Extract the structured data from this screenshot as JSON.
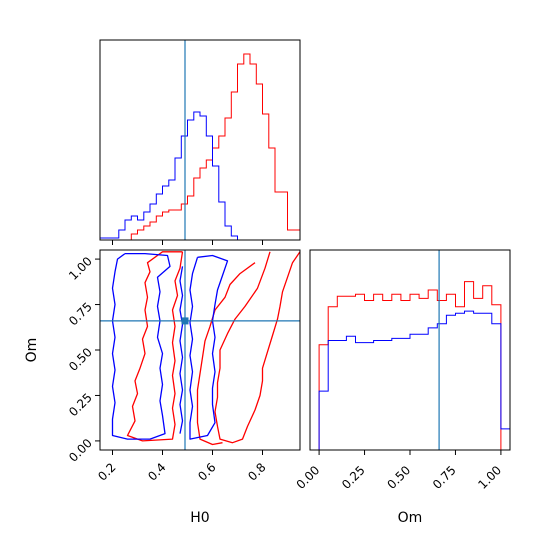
{
  "colors": {
    "red": "#ff0000",
    "blue": "#0000ff",
    "truth": "#1f77b4",
    "frame": "#000000"
  },
  "chart_data": {
    "type": "corner",
    "parameters": [
      "H0",
      "Om"
    ],
    "truth": {
      "H0": 0.49,
      "Om": 0.66
    },
    "labels": {
      "x_bottom_left": "H0",
      "x_bottom_right": "Om",
      "y_left": "Om"
    },
    "hist_H0": {
      "xlim": [
        0.15,
        0.95
      ],
      "bin_edges": [
        0.15,
        0.175,
        0.2,
        0.225,
        0.25,
        0.275,
        0.3,
        0.325,
        0.35,
        0.375,
        0.4,
        0.425,
        0.45,
        0.475,
        0.5,
        0.525,
        0.55,
        0.575,
        0.6,
        0.625,
        0.65,
        0.675,
        0.7,
        0.725,
        0.75,
        0.775,
        0.8,
        0.825,
        0.85,
        0.875,
        0.9,
        0.925,
        0.95
      ],
      "series": [
        {
          "color": "red",
          "counts": [
            0,
            0,
            0,
            0,
            0,
            0.03,
            0.05,
            0.07,
            0.09,
            0.12,
            0.14,
            0.15,
            0.15,
            0.18,
            0.22,
            0.31,
            0.36,
            0.4,
            0.46,
            0.52,
            0.61,
            0.74,
            0.88,
            0.93,
            0.88,
            0.78,
            0.63,
            0.46,
            0.24,
            0.24,
            0.05,
            0.05
          ]
        },
        {
          "color": "blue",
          "counts": [
            0.01,
            0.01,
            0.01,
            0.05,
            0.1,
            0.12,
            0.1,
            0.14,
            0.18,
            0.23,
            0.27,
            0.3,
            0.41,
            0.52,
            0.6,
            0.64,
            0.62,
            0.52,
            0.37,
            0.19,
            0.07,
            0.02,
            0,
            0,
            0,
            0,
            0,
            0,
            0,
            0,
            0,
            0
          ]
        }
      ],
      "ylim": [
        0,
        1.0
      ]
    },
    "hist_Om": {
      "xlim": [
        -0.05,
        1.05
      ],
      "ticks": [
        "0.00",
        "0.25",
        "0.50",
        "0.75",
        "1.00"
      ],
      "tick_values": [
        0,
        0.25,
        0.5,
        0.75,
        1.0
      ],
      "bin_edges": [
        -0.05,
        0,
        0.05,
        0.1,
        0.15,
        0.2,
        0.25,
        0.3,
        0.35,
        0.4,
        0.45,
        0.5,
        0.55,
        0.6,
        0.65,
        0.7,
        0.75,
        0.8,
        0.85,
        0.9,
        0.95,
        1.0,
        1.05
      ],
      "series": [
        {
          "color": "red",
          "counts": [
            0,
            0.5,
            0.68,
            0.73,
            0.73,
            0.74,
            0.71,
            0.74,
            0.71,
            0.74,
            0.71,
            0.74,
            0.72,
            0.76,
            0.71,
            0.74,
            0.68,
            0.8,
            0.72,
            0.78,
            0.69,
            0
          ]
        },
        {
          "color": "blue",
          "counts": [
            0,
            0.28,
            0.52,
            0.52,
            0.54,
            0.51,
            0.51,
            0.52,
            0.52,
            0.53,
            0.53,
            0.55,
            0.55,
            0.58,
            0.6,
            0.64,
            0.65,
            0.66,
            0.65,
            0.65,
            0.6,
            0.1
          ]
        }
      ],
      "ylim": [
        0,
        0.95
      ]
    },
    "contour_panel": {
      "xlim": [
        0.15,
        0.95
      ],
      "ylim": [
        -0.05,
        1.05
      ],
      "xticks": [
        "0.2",
        "0.4",
        "0.6",
        "0.8"
      ],
      "xtick_values": [
        0.2,
        0.4,
        0.6,
        0.8
      ],
      "yticks": [
        "0.00",
        "0.25",
        "0.50",
        "0.75",
        "1.00"
      ],
      "ytick_values": [
        0,
        0.25,
        0.5,
        0.75,
        1.0
      ],
      "contours": [
        {
          "color": "red",
          "points": [
            [
              0.48,
              1.04
            ],
            [
              0.47,
              0.95
            ],
            [
              0.45,
              0.88
            ],
            [
              0.46,
              0.8
            ],
            [
              0.44,
              0.72
            ],
            [
              0.45,
              0.63
            ],
            [
              0.44,
              0.54
            ],
            [
              0.45,
              0.44
            ],
            [
              0.44,
              0.36
            ],
            [
              0.45,
              0.26
            ],
            [
              0.44,
              0.18
            ],
            [
              0.45,
              0.09
            ],
            [
              0.44,
              0.01
            ],
            [
              0.32,
              0.0
            ],
            [
              0.26,
              0.03
            ],
            [
              0.29,
              0.11
            ],
            [
              0.28,
              0.19
            ],
            [
              0.3,
              0.26
            ],
            [
              0.29,
              0.33
            ],
            [
              0.31,
              0.4
            ],
            [
              0.33,
              0.48
            ],
            [
              0.32,
              0.56
            ],
            [
              0.34,
              0.63
            ],
            [
              0.33,
              0.72
            ],
            [
              0.34,
              0.79
            ],
            [
              0.33,
              0.87
            ],
            [
              0.35,
              0.93
            ],
            [
              0.34,
              0.98
            ],
            [
              0.4,
              1.04
            ],
            [
              0.48,
              1.04
            ]
          ]
        },
        {
          "color": "red",
          "points": [
            [
              0.83,
              1.04
            ],
            [
              0.81,
              0.95
            ],
            [
              0.78,
              0.84
            ],
            [
              0.73,
              0.74
            ],
            [
              0.69,
              0.67
            ],
            [
              0.66,
              0.59
            ],
            [
              0.63,
              0.5
            ],
            [
              0.63,
              0.4
            ],
            [
              0.62,
              0.32
            ],
            [
              0.62,
              0.24
            ],
            [
              0.61,
              0.16
            ],
            [
              0.62,
              0.08
            ],
            [
              0.63,
              0.01
            ],
            [
              0.68,
              -0.01
            ],
            [
              0.72,
              0.01
            ],
            [
              0.74,
              0.08
            ],
            [
              0.77,
              0.17
            ],
            [
              0.79,
              0.25
            ],
            [
              0.8,
              0.33
            ],
            [
              0.8,
              0.4
            ],
            [
              0.82,
              0.49
            ],
            [
              0.84,
              0.58
            ],
            [
              0.86,
              0.67
            ],
            [
              0.87,
              0.74
            ],
            [
              0.88,
              0.82
            ],
            [
              0.9,
              0.9
            ],
            [
              0.92,
              0.98
            ],
            [
              0.95,
              1.04
            ]
          ]
        },
        {
          "color": "red",
          "points": [
            [
              0.77,
              0.98
            ],
            [
              0.71,
              0.92
            ],
            [
              0.67,
              0.86
            ],
            [
              0.65,
              0.79
            ],
            [
              0.61,
              0.72
            ],
            [
              0.59,
              0.63
            ],
            [
              0.57,
              0.55
            ],
            [
              0.56,
              0.46
            ],
            [
              0.55,
              0.37
            ],
            [
              0.54,
              0.28
            ],
            [
              0.54,
              0.19
            ],
            [
              0.54,
              0.1
            ],
            [
              0.55,
              0.01
            ],
            [
              0.6,
              -0.02
            ],
            [
              0.64,
              -0.01
            ]
          ]
        },
        {
          "color": "blue",
          "points": [
            [
              0.25,
              1.03
            ],
            [
              0.33,
              1.03
            ],
            [
              0.42,
              1.02
            ],
            [
              0.43,
              0.96
            ],
            [
              0.38,
              0.9
            ],
            [
              0.39,
              0.82
            ],
            [
              0.38,
              0.74
            ],
            [
              0.39,
              0.66
            ],
            [
              0.38,
              0.57
            ],
            [
              0.4,
              0.48
            ],
            [
              0.39,
              0.4
            ],
            [
              0.4,
              0.31
            ],
            [
              0.39,
              0.22
            ],
            [
              0.4,
              0.14
            ],
            [
              0.41,
              0.04
            ],
            [
              0.35,
              0.01
            ],
            [
              0.26,
              0.01
            ],
            [
              0.2,
              0.03
            ],
            [
              0.2,
              0.12
            ],
            [
              0.21,
              0.21
            ],
            [
              0.2,
              0.3
            ],
            [
              0.21,
              0.39
            ],
            [
              0.2,
              0.48
            ],
            [
              0.21,
              0.57
            ],
            [
              0.2,
              0.66
            ],
            [
              0.21,
              0.75
            ],
            [
              0.2,
              0.84
            ],
            [
              0.21,
              0.93
            ],
            [
              0.22,
              1.0
            ],
            [
              0.25,
              1.03
            ]
          ]
        },
        {
          "color": "blue",
          "points": [
            [
              0.54,
              1.01
            ],
            [
              0.6,
              1.02
            ],
            [
              0.66,
              0.99
            ],
            [
              0.64,
              0.91
            ],
            [
              0.62,
              0.83
            ],
            [
              0.61,
              0.75
            ],
            [
              0.6,
              0.66
            ],
            [
              0.61,
              0.57
            ],
            [
              0.6,
              0.48
            ],
            [
              0.61,
              0.38
            ],
            [
              0.6,
              0.29
            ],
            [
              0.6,
              0.2
            ],
            [
              0.61,
              0.1
            ],
            [
              0.58,
              0.03
            ],
            [
              0.51,
              0.01
            ],
            [
              0.51,
              0.1
            ],
            [
              0.52,
              0.19
            ],
            [
              0.51,
              0.28
            ],
            [
              0.52,
              0.38
            ],
            [
              0.51,
              0.47
            ],
            [
              0.52,
              0.56
            ],
            [
              0.51,
              0.65
            ],
            [
              0.52,
              0.74
            ],
            [
              0.51,
              0.83
            ],
            [
              0.52,
              0.92
            ],
            [
              0.54,
              1.01
            ]
          ]
        },
        {
          "color": "blue",
          "points": [
            [
              0.48,
              0.96
            ],
            [
              0.47,
              0.88
            ],
            [
              0.48,
              0.8
            ],
            [
              0.47,
              0.72
            ],
            [
              0.48,
              0.64
            ],
            [
              0.47,
              0.55
            ],
            [
              0.48,
              0.46
            ],
            [
              0.47,
              0.37
            ],
            [
              0.48,
              0.28
            ],
            [
              0.47,
              0.2
            ],
            [
              0.48,
              0.11
            ],
            [
              0.47,
              0.04
            ]
          ]
        }
      ]
    }
  }
}
